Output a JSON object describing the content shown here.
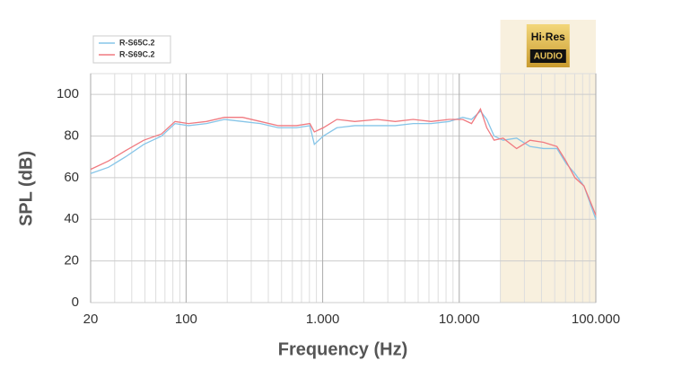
{
  "chart_data": {
    "type": "line",
    "xlabel": "Frequency (Hz)",
    "ylabel": "SPL (dB)",
    "logo": {
      "top": "Hi·Res",
      "bottom": "AUDIO"
    },
    "shaded_xrange": [
      20000,
      100000
    ],
    "x": [
      20,
      27,
      36,
      49,
      66,
      83,
      104,
      141,
      191,
      259,
      350,
      474,
      643,
      806,
      869,
      1011,
      1271,
      1718,
      2509,
      3396,
      4599,
      6223,
      8433,
      10600,
      12300,
      14300,
      15900,
      18000,
      20950,
      26300,
      33000,
      41400,
      51900,
      60400,
      70300,
      81900,
      100000
    ],
    "series": [
      {
        "name": "R-S65C.2",
        "color": "#86c5e8",
        "values": [
          62,
          65,
          70,
          76,
          80,
          86,
          85,
          86,
          88,
          87,
          86,
          84,
          84,
          85,
          76,
          80,
          84,
          85,
          85,
          85,
          86,
          86,
          87,
          89,
          88,
          92,
          88,
          80,
          78,
          79,
          75,
          74,
          74,
          67,
          62,
          56,
          40
        ]
      },
      {
        "name": "R-S69C.2",
        "color": "#f07a80",
        "values": [
          64,
          68,
          73,
          78,
          81,
          87,
          86,
          87,
          89,
          89,
          87,
          85,
          85,
          86,
          82,
          84,
          88,
          87,
          88,
          87,
          88,
          87,
          88,
          88,
          86,
          93,
          84,
          78,
          79,
          74,
          78,
          77,
          75,
          68,
          60,
          56,
          42
        ]
      }
    ],
    "xscale": "log",
    "xlim": [
      20,
      100000
    ],
    "xticks": [
      20,
      100,
      {
        "value": 1000,
        "label": "1.000"
      },
      {
        "value": 10000,
        "label": "10.000"
      },
      {
        "value": 100000,
        "label": "100.000"
      }
    ],
    "ylim": [
      0,
      110
    ],
    "yticks": [
      0,
      20,
      40,
      60,
      80,
      100
    ],
    "grid": true,
    "legend": "upper left"
  }
}
